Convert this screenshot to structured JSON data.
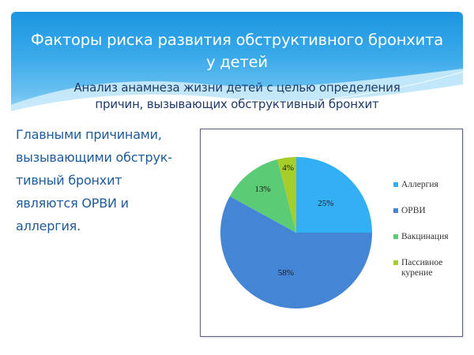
{
  "slide": {
    "title_line1": "Факторы риска развития обструктивного бронхита",
    "title_line2": "у детей",
    "subtitle_line1": "Анализ анамнеза жизни детей с целью определения",
    "subtitle_line2": "причин, вызывающих обструктивный бронхит",
    "body_lines": [
      "Главными причинами,",
      "вызывающими обструк-",
      "тивный бронхит",
      "являются ОРВИ и",
      "аллергия."
    ]
  },
  "colors": {
    "header_top": "#1b96e0",
    "title_text": "#ffffff",
    "subtitle_text": "#1f3b6a",
    "body_text": "#1f5a9a",
    "frame_border": "#5a5f80"
  },
  "chart_data": {
    "type": "pie",
    "title": "",
    "categories": [
      "Аллергия",
      "ОРВИ",
      "Вакцинация",
      "Пассивное курение"
    ],
    "values": [
      25,
      58,
      13,
      4
    ],
    "labels": [
      "25%",
      "58%",
      "13%",
      "4%"
    ],
    "colors": [
      "#33b0f5",
      "#4585d6",
      "#5ccb75",
      "#a8cc2a"
    ],
    "start_angle": "12 o'clock, clockwise",
    "legend_position": "right",
    "legend": [
      {
        "label": "Аллергия",
        "color": "#33b0f5"
      },
      {
        "label": "ОРВИ",
        "color": "#4585d6"
      },
      {
        "label": "Вакцинация",
        "color": "#5ccb75"
      },
      {
        "label": "Пассивное курение",
        "color": "#a8cc2a"
      }
    ]
  },
  "legend_text": {
    "item0": "Аллергия",
    "item1": "ОРВИ",
    "item2": "Вакцинация",
    "item3_line1": "Пассивное",
    "item3_line2": "курение"
  }
}
